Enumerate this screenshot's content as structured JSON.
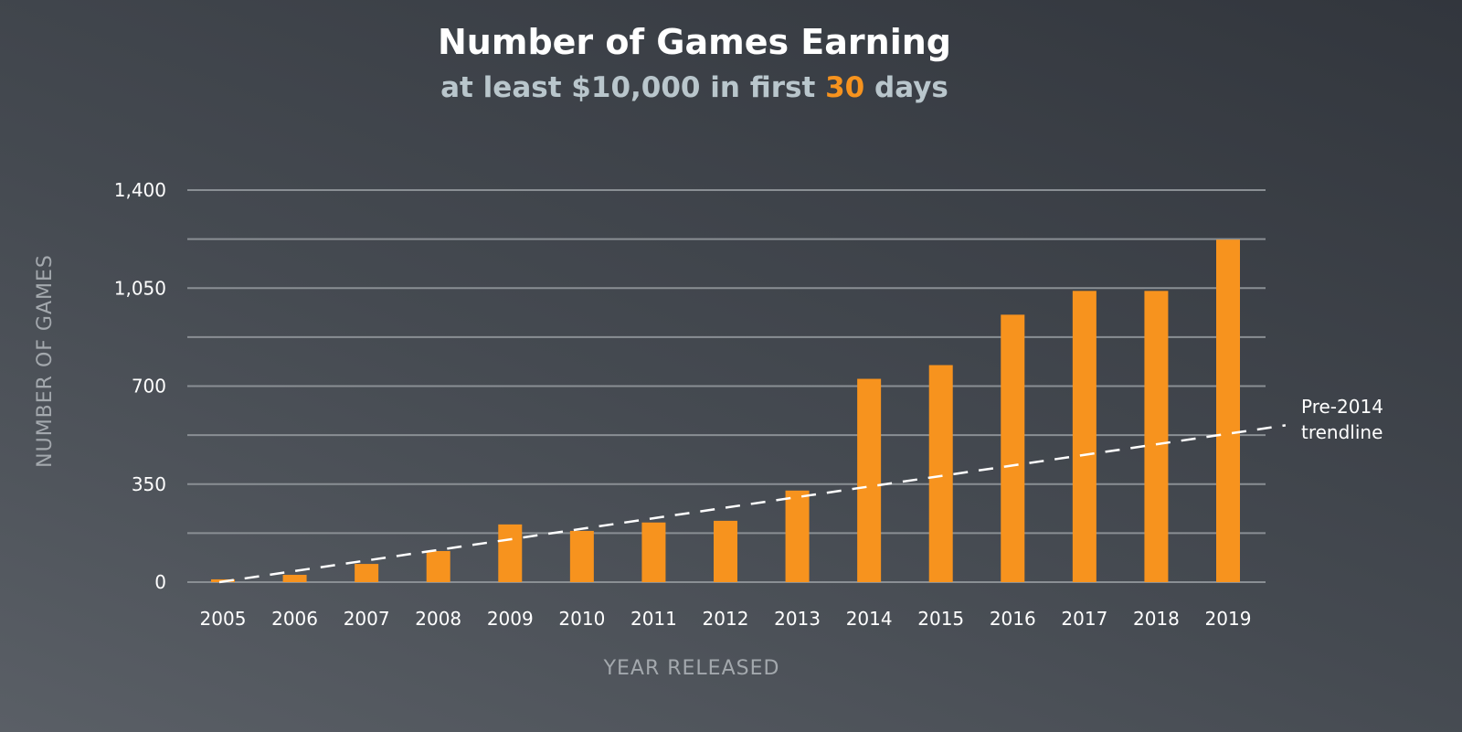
{
  "chart_data": {
    "type": "bar",
    "title": "Number of Games Earning",
    "subtitle_parts": [
      "at least $10,000 in first ",
      "30",
      " days"
    ],
    "xlabel": "YEAR RELEASED",
    "ylabel": "NUMBER OF GAMES",
    "categories": [
      "2005",
      "2006",
      "2007",
      "2008",
      "2009",
      "2010",
      "2011",
      "2012",
      "2013",
      "2014",
      "2015",
      "2016",
      "2017",
      "2018",
      "2019"
    ],
    "values": [
      10,
      26,
      65,
      111,
      206,
      183,
      213,
      219,
      327,
      726,
      775,
      955,
      1040,
      1040,
      1223
    ],
    "ylim": [
      0,
      1400
    ],
    "yticks": [
      0,
      350,
      700,
      1050,
      1400
    ],
    "ytick_labels": [
      "0",
      "350",
      "700",
      "1,050",
      "1,400"
    ],
    "grid_step": 175,
    "grid": true,
    "trendline": {
      "label_line1": "Pre-2014",
      "label_line2": "trendline",
      "x_start": 2005,
      "y_start": 0,
      "x_end": 2019.8,
      "y_end": 560,
      "style": "dashed"
    },
    "colors": {
      "bar": "#f7931e",
      "grid": "#8a8f94",
      "trend": "#ffffff",
      "highlight": "#f7931e"
    }
  }
}
